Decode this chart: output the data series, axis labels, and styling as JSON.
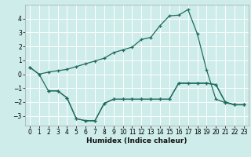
{
  "xlabel": "Humidex (Indice chaleur)",
  "background_color": "#ceecea",
  "line_color": "#1e6b5e",
  "grid_color": "#ffffff",
  "xlim": [
    -0.5,
    23.5
  ],
  "ylim": [
    -3.7,
    5.0
  ],
  "xticks": [
    0,
    1,
    2,
    3,
    4,
    5,
    6,
    7,
    8,
    9,
    10,
    11,
    12,
    13,
    14,
    15,
    16,
    17,
    18,
    19,
    20,
    21,
    22,
    23
  ],
  "yticks": [
    -3,
    -2,
    -1,
    0,
    1,
    2,
    3,
    4
  ],
  "line1_x": [
    0,
    1,
    2,
    3,
    4,
    5,
    6,
    7,
    8,
    9,
    10,
    11,
    12,
    13,
    14,
    15,
    16,
    17,
    18,
    19,
    20,
    21,
    22,
    23
  ],
  "line1_y": [
    0.5,
    0.0,
    0.15,
    0.25,
    0.35,
    0.55,
    0.75,
    0.95,
    1.15,
    1.55,
    1.75,
    1.95,
    2.5,
    2.65,
    3.5,
    4.2,
    4.25,
    4.65,
    2.9,
    0.3,
    -1.8,
    -2.05,
    -2.2,
    -2.2
  ],
  "line2_x": [
    0,
    1,
    2,
    3,
    4,
    5,
    6,
    7,
    8,
    9,
    10,
    11,
    12,
    13,
    14,
    15,
    16,
    17,
    18,
    19,
    20,
    21,
    22,
    23
  ],
  "line2_y": [
    0.5,
    0.0,
    -1.2,
    -1.2,
    -1.7,
    -3.2,
    -3.35,
    -3.35,
    -2.1,
    -1.8,
    -1.8,
    -1.8,
    -1.8,
    -1.8,
    -1.8,
    -1.8,
    -0.65,
    -0.65,
    -0.65,
    -0.65,
    -0.75,
    -2.0,
    -2.2,
    -2.2
  ],
  "line3_x": [
    2,
    3,
    4,
    5,
    6,
    7,
    8,
    9,
    10,
    11,
    12,
    13,
    14,
    15,
    16,
    17,
    18,
    19,
    20,
    21,
    22,
    23
  ],
  "line3_y": [
    -1.2,
    -1.2,
    -1.7,
    -3.2,
    -3.35,
    -3.35,
    -2.1,
    -1.8,
    -1.8,
    -1.8,
    -1.8,
    -1.8,
    -1.8,
    -1.8,
    -0.65,
    -0.65,
    -0.65,
    -0.65,
    -0.75,
    -2.0,
    -2.2,
    -2.2
  ]
}
